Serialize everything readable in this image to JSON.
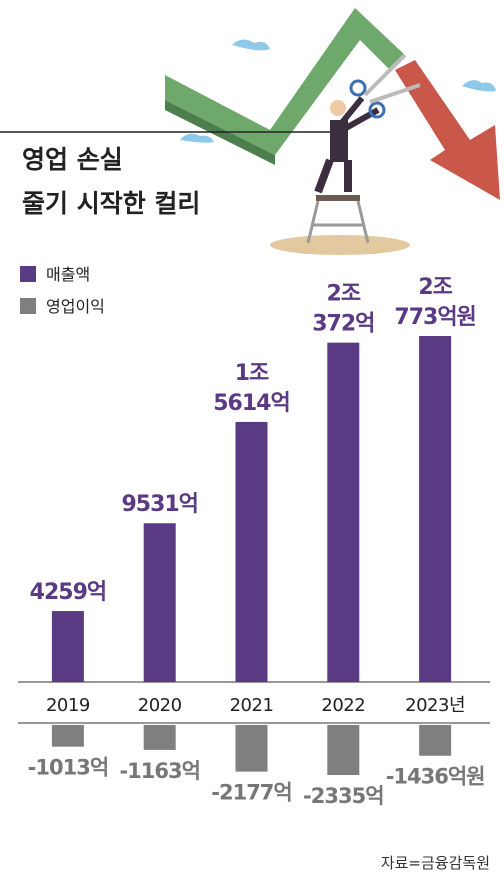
{
  "chart_data": {
    "type": "bar",
    "title": "영업 손실\n줄기 시작한 컬리",
    "categories": [
      "2019",
      "2020",
      "2021",
      "2022",
      "2023년"
    ],
    "series": [
      {
        "name": "매출액",
        "color": "#5b3a84",
        "values": [
          4259,
          9531,
          15614,
          20372,
          20773
        ],
        "value_labels": [
          "4259억",
          "9531억",
          "1조\n5614억",
          "2조\n372억",
          "2조\n773억원"
        ]
      },
      {
        "name": "영업이익",
        "color": "#7f7f7f",
        "values": [
          -1013,
          -1163,
          -2177,
          -2335,
          -1436
        ],
        "value_labels": [
          "-1013억",
          "-1163억",
          "-2177억",
          "-2335억",
          "-1436억원"
        ]
      }
    ],
    "source": "자료=금융감독원"
  }
}
